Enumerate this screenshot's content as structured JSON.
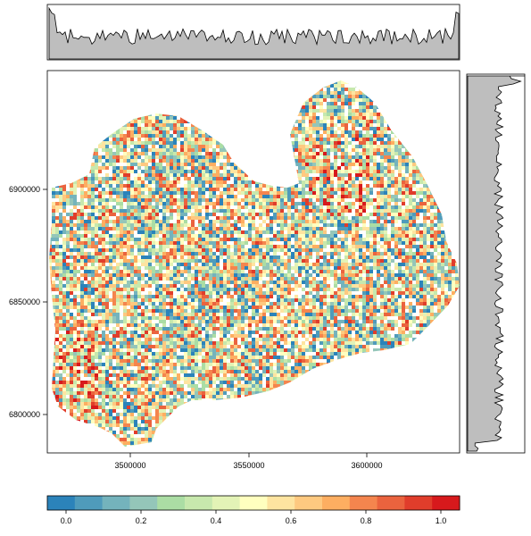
{
  "map": {
    "type": "raster",
    "x_ticks": [
      "3500000",
      "3550000",
      "3600000"
    ],
    "y_ticks": [
      "6900000",
      "6850000",
      "6800000"
    ],
    "x_range": [
      3463000,
      3641000
    ],
    "y_range": [
      6780000,
      6950000
    ],
    "value_range": [
      -0.05,
      1.05
    ]
  },
  "colorbar": {
    "ticks": [
      "0.0",
      "0.2",
      "0.4",
      "0.6",
      "0.8",
      "1.0"
    ],
    "tick_values": [
      0.0,
      0.2,
      0.4,
      0.6,
      0.8,
      1.0
    ],
    "colors": [
      "#2b83ba",
      "#4f9bbb",
      "#74b3bc",
      "#94c6b9",
      "#abdda4",
      "#c7e8ad",
      "#e3f3b6",
      "#ffffbf",
      "#fee4a0",
      "#fec980",
      "#fdae61",
      "#f4854e",
      "#ea633e",
      "#e03d2b",
      "#d7191c"
    ]
  },
  "marginal_top": {
    "fill": "#bebebe",
    "stroke": "#000000"
  },
  "marginal_right": {
    "fill": "#bebebe",
    "stroke": "#000000"
  }
}
